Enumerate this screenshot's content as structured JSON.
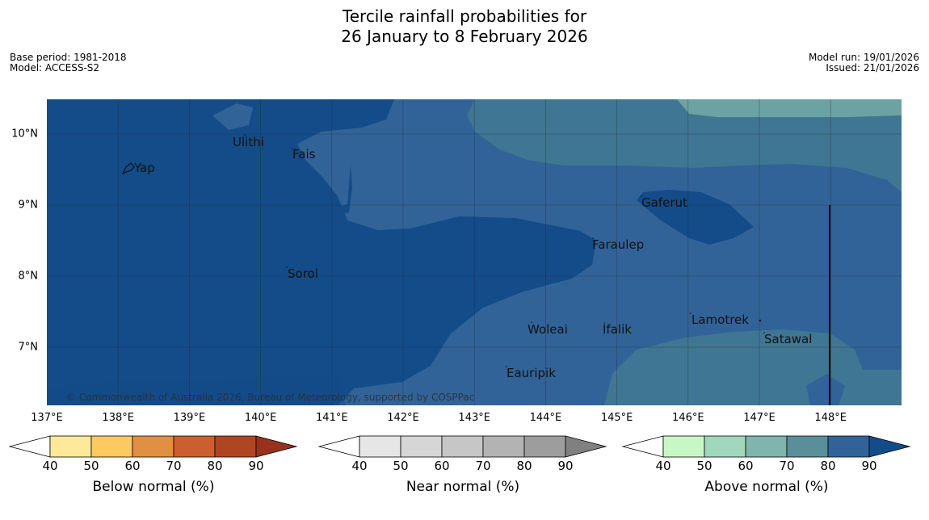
{
  "title": {
    "line1": "Tercile rainfall probabilities for",
    "line2": "26 January to 8 February 2026"
  },
  "meta": {
    "base_period": "Base period: 1981-2018",
    "model": "Model: ACCESS-S2",
    "model_run": "Model run: 19/01/2026",
    "issued": "Issued: 21/01/2026"
  },
  "map": {
    "copyright": "© Commonwealth of Australia 2026, Bureau of Meteorology, supported by COSPPac",
    "lon_labels": [
      "137°E",
      "138°E",
      "139°E",
      "140°E",
      "141°E",
      "142°E",
      "143°E",
      "144°E",
      "145°E",
      "146°E",
      "147°E",
      "148°E"
    ],
    "lat_labels": [
      "10°N",
      "9°N",
      "8°N",
      "7°N"
    ],
    "places": {
      "yap": "Yap",
      "ulithi": "Ulithi",
      "fais": "Fais",
      "sorol": "Sorol",
      "gaferut": "Gaferut",
      "faraulep": "Faraulep",
      "woleai": "Woleai",
      "ifalik": "Ifalik",
      "lamotrek": "Lamotrek",
      "satawal": "Satawal",
      "eauripik": "Eauripik"
    },
    "colors": {
      "above_90": "#134c89",
      "above_80": "#316398",
      "above_70": "#3f7693",
      "above_60": "#6aa3a1"
    }
  },
  "colorbars": {
    "below": {
      "label": "Below normal (%)",
      "ticks": [
        "40",
        "50",
        "60",
        "70",
        "80",
        "90"
      ],
      "colors": [
        "#ffffff",
        "#fee99a",
        "#fdc961",
        "#e18f43",
        "#cb5f2f",
        "#af4523",
        "#98321c"
      ]
    },
    "near": {
      "label": "Near normal (%)",
      "ticks": [
        "40",
        "50",
        "60",
        "70",
        "80",
        "90"
      ],
      "colors": [
        "#ffffff",
        "#e6e6e6",
        "#d6d6d6",
        "#c6c6c6",
        "#b3b3b3",
        "#9d9d9d",
        "#808080"
      ]
    },
    "above": {
      "label": "Above normal (%)",
      "ticks": [
        "40",
        "50",
        "60",
        "70",
        "80",
        "90"
      ],
      "colors": [
        "#ffffff",
        "#c8f7c6",
        "#a1d8bd",
        "#7fb5ac",
        "#5a8f99",
        "#316398",
        "#134c89"
      ]
    }
  }
}
